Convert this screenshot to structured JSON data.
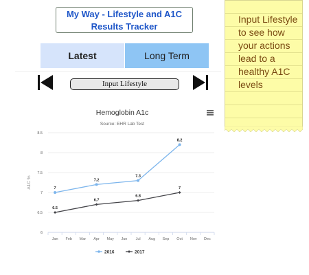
{
  "app": {
    "title_line1": "My Way - Lifestyle and A1C",
    "title_line2": "Results Tracker"
  },
  "tabs": [
    {
      "label": "Latest",
      "active": false
    },
    {
      "label": "Long Term",
      "active": true
    }
  ],
  "nav": {
    "first_icon": "skip-to-first-icon",
    "last_icon": "skip-to-last-icon",
    "input_label": "Input Lifestyle"
  },
  "note": {
    "text": "Input Lifestyle to see how your actions lead to a healthy A1C levels",
    "color": "#fdfca7"
  },
  "menu_icon": "hamburger-menu-icon",
  "chart_data": {
    "type": "line",
    "title": "Hemoglobin A1c",
    "subtitle": "Source: EHR Lab Test",
    "ylabel": "A1C %",
    "xlabel": "",
    "categories": [
      "Jan",
      "Feb",
      "Mar",
      "Apr",
      "May",
      "Jun",
      "Jul",
      "Aug",
      "Sep",
      "Oct",
      "Nov",
      "Dec"
    ],
    "ylim": [
      6,
      8.5
    ],
    "yticks": [
      "6",
      "6.5",
      "7",
      "7.5",
      "8",
      "8.5"
    ],
    "grid": true,
    "legend_position": "bottom",
    "series": [
      {
        "name": "2016",
        "color": "#7cb5ec",
        "points": [
          {
            "x": "Jan",
            "y": 7
          },
          {
            "x": "Apr",
            "y": 7.2
          },
          {
            "x": "Jul",
            "y": 7.3
          },
          {
            "x": "Oct",
            "y": 8.2
          }
        ]
      },
      {
        "name": "2017",
        "color": "#434348",
        "points": [
          {
            "x": "Jan",
            "y": 6.5
          },
          {
            "x": "Apr",
            "y": 6.7
          },
          {
            "x": "Jul",
            "y": 6.8
          },
          {
            "x": "Oct",
            "y": 7
          }
        ]
      }
    ]
  }
}
